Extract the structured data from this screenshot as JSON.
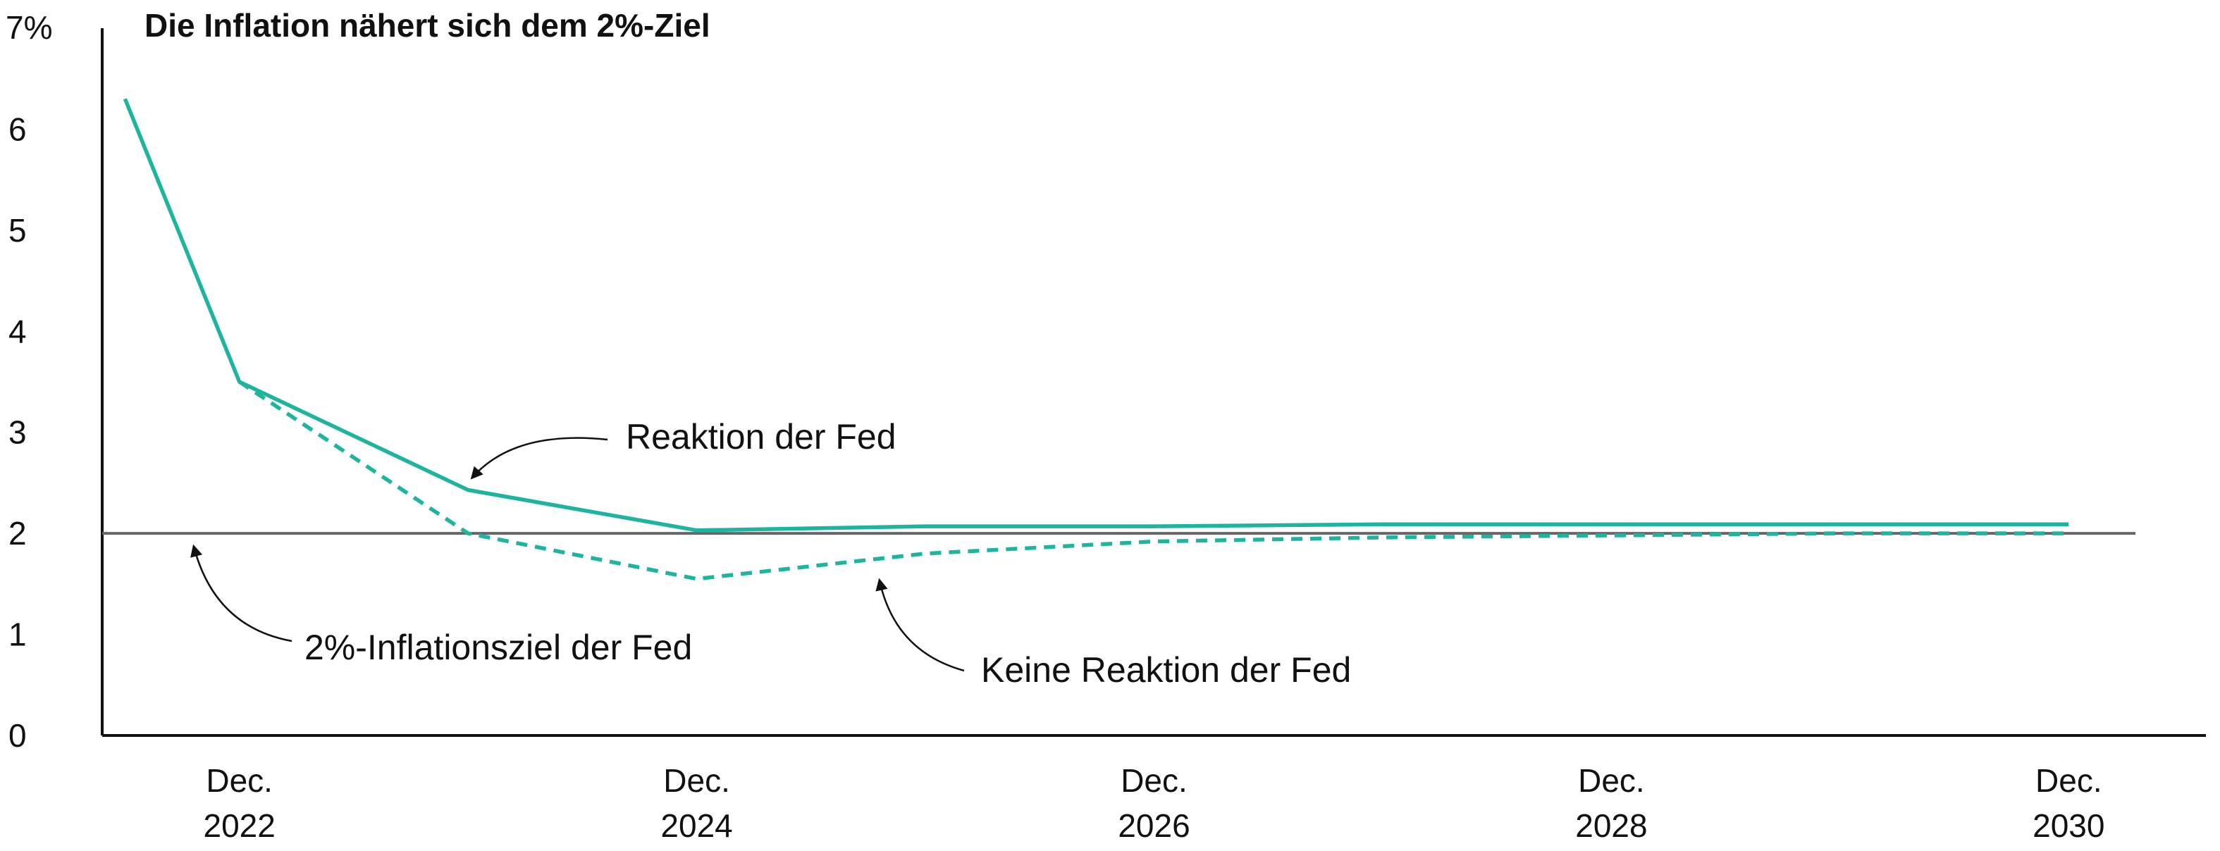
{
  "chart_data": {
    "type": "line",
    "title": "Die Inflation nähert sich dem 2%-Ziel",
    "y_unit_label": "7%",
    "ylim": [
      0,
      7
    ],
    "y_ticks": [
      "0",
      "1",
      "2",
      "3",
      "4",
      "5",
      "6"
    ],
    "xlim": [
      2021.9,
      2031.1
    ],
    "x_ticks": [
      {
        "x": 2022.5,
        "line1": "Dec.",
        "line2": "2022"
      },
      {
        "x": 2024.5,
        "line1": "Dec.",
        "line2": "2024"
      },
      {
        "x": 2026.5,
        "line1": "Dec.",
        "line2": "2026"
      },
      {
        "x": 2028.5,
        "line1": "Dec.",
        "line2": "2028"
      },
      {
        "x": 2030.5,
        "line1": "Dec.",
        "line2": "2030"
      }
    ],
    "series": [
      {
        "name": "Reaktion der Fed",
        "style": "solid",
        "color": "#1db59f",
        "x": [
          2022.0,
          2022.5,
          2023.5,
          2024.5,
          2025.5,
          2026.5,
          2027.5,
          2028.5,
          2029.5,
          2030.5
        ],
        "y": [
          6.3,
          3.5,
          2.43,
          2.03,
          2.07,
          2.07,
          2.09,
          2.09,
          2.09,
          2.09
        ]
      },
      {
        "name": "Keine Reaktion der Fed",
        "style": "dashed",
        "color": "#1db59f",
        "x": [
          2022.5,
          2023.5,
          2024.5,
          2025.5,
          2026.5,
          2027.5,
          2028.5,
          2029.5,
          2030.5
        ],
        "y": [
          3.5,
          2.0,
          1.55,
          1.8,
          1.92,
          1.96,
          1.98,
          2.0,
          2.0
        ]
      }
    ],
    "reference_line": {
      "y": 2,
      "label": "2%-Inflationsziel der Fed",
      "color": "#666666"
    },
    "annotations": [
      {
        "text": "Reaktion der Fed",
        "target": [
          2023.6,
          2.4
        ]
      },
      {
        "text": "2%-Inflationsziel der Fed",
        "target": [
          2022.4,
          1.92
        ]
      },
      {
        "text": "Keine Reaktion der Fed",
        "target": [
          2025.4,
          1.55
        ]
      }
    ],
    "grid": false,
    "legend": "none"
  }
}
